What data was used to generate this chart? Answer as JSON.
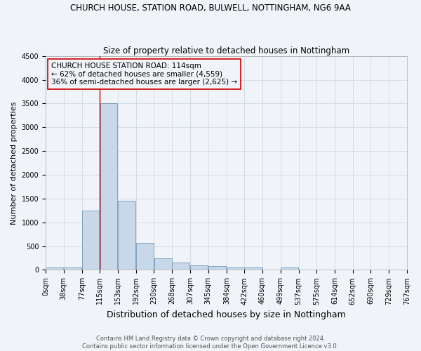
{
  "title1": "CHURCH HOUSE, STATION ROAD, BULWELL, NOTTINGHAM, NG6 9AA",
  "title2": "Size of property relative to detached houses in Nottingham",
  "xlabel": "Distribution of detached houses by size in Nottingham",
  "ylabel": "Number of detached properties",
  "bin_labels": [
    "0sqm",
    "38sqm",
    "77sqm",
    "115sqm",
    "153sqm",
    "192sqm",
    "230sqm",
    "268sqm",
    "307sqm",
    "345sqm",
    "384sqm",
    "422sqm",
    "460sqm",
    "499sqm",
    "537sqm",
    "575sqm",
    "614sqm",
    "652sqm",
    "690sqm",
    "729sqm",
    "767sqm"
  ],
  "bin_edges": [
    0,
    38,
    77,
    115,
    153,
    192,
    230,
    268,
    307,
    345,
    384,
    422,
    460,
    499,
    537,
    575,
    614,
    652,
    690,
    729,
    767
  ],
  "bar_heights": [
    50,
    50,
    1250,
    3500,
    1450,
    575,
    250,
    150,
    100,
    75,
    50,
    50,
    0,
    50,
    0,
    0,
    0,
    0,
    0,
    0
  ],
  "bar_color": "#c8d8e8",
  "bar_edgecolor": "#7099bb",
  "grid_color": "#c8d4e0",
  "ylim": [
    0,
    4500
  ],
  "yticks": [
    0,
    500,
    1000,
    1500,
    2000,
    2500,
    3000,
    3500,
    4000,
    4500
  ],
  "vline_x": 114,
  "vline_color": "#cc0000",
  "annotation_text": "CHURCH HOUSE STATION ROAD: 114sqm\n← 62% of detached houses are smaller (4,559)\n36% of semi-detached houses are larger (2,625) →",
  "annotation_box_edgecolor": "#cc0000",
  "footer1": "Contains HM Land Registry data © Crown copyright and database right 2024.",
  "footer2": "Contains public sector information licensed under the Open Government Licence v3.0.",
  "bg_color": "#f0f4f8",
  "title1_fontsize": 8.5,
  "title2_fontsize": 8.5,
  "xlabel_fontsize": 9,
  "ylabel_fontsize": 8,
  "tick_fontsize": 7,
  "annotation_fontsize": 7.5,
  "footer_fontsize": 6
}
